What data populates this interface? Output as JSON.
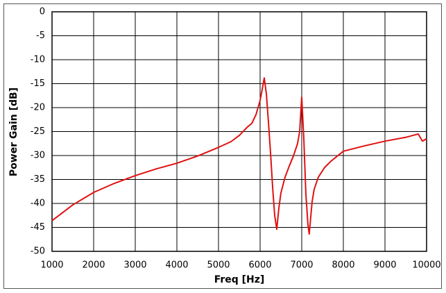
{
  "chart_data": {
    "type": "line",
    "xlabel": "Freq [Hz]",
    "ylabel": "Power Gain [dB]",
    "x": [
      1000,
      1500,
      2000,
      2500,
      3000,
      3500,
      4000,
      4500,
      5000,
      5300,
      5500,
      5700,
      5800,
      5900,
      6000,
      6050,
      6100,
      6150,
      6200,
      6250,
      6300,
      6350,
      6400,
      6450,
      6500,
      6600,
      6700,
      6800,
      6900,
      6950,
      7000,
      7050,
      7100,
      7150,
      7180,
      7220,
      7250,
      7300,
      7400,
      7550,
      7700,
      8000,
      8500,
      9000,
      9500,
      9800,
      9900,
      10000
    ],
    "series": [
      {
        "name": "Power Gain",
        "color": "#e01010",
        "values": [
          -43.6,
          -40.3,
          -37.7,
          -35.8,
          -34.2,
          -32.8,
          -31.6,
          -30.1,
          -28.3,
          -27.1,
          -25.8,
          -24.0,
          -23.3,
          -21.5,
          -18.5,
          -16.2,
          -13.8,
          -17.1,
          -23.0,
          -29.4,
          -36.5,
          -42.5,
          -45.4,
          -41.0,
          -37.8,
          -34.5,
          -32.2,
          -30.1,
          -27.5,
          -25.0,
          -17.8,
          -26.5,
          -38.1,
          -44.5,
          -46.4,
          -42.5,
          -39.6,
          -37.0,
          -34.5,
          -32.5,
          -31.2,
          -29.1,
          -28.0,
          -27.0,
          -26.2,
          -25.5,
          -27.0,
          -26.5
        ]
      }
    ],
    "xlim": [
      1000,
      10000
    ],
    "ylim": [
      -50,
      0
    ],
    "xticks": [
      1000,
      2000,
      3000,
      4000,
      5000,
      6000,
      7000,
      8000,
      9000,
      10000
    ],
    "yticks": [
      0,
      -5,
      -10,
      -15,
      -20,
      -25,
      -30,
      -35,
      -40,
      -45,
      -50
    ],
    "grid": true
  }
}
